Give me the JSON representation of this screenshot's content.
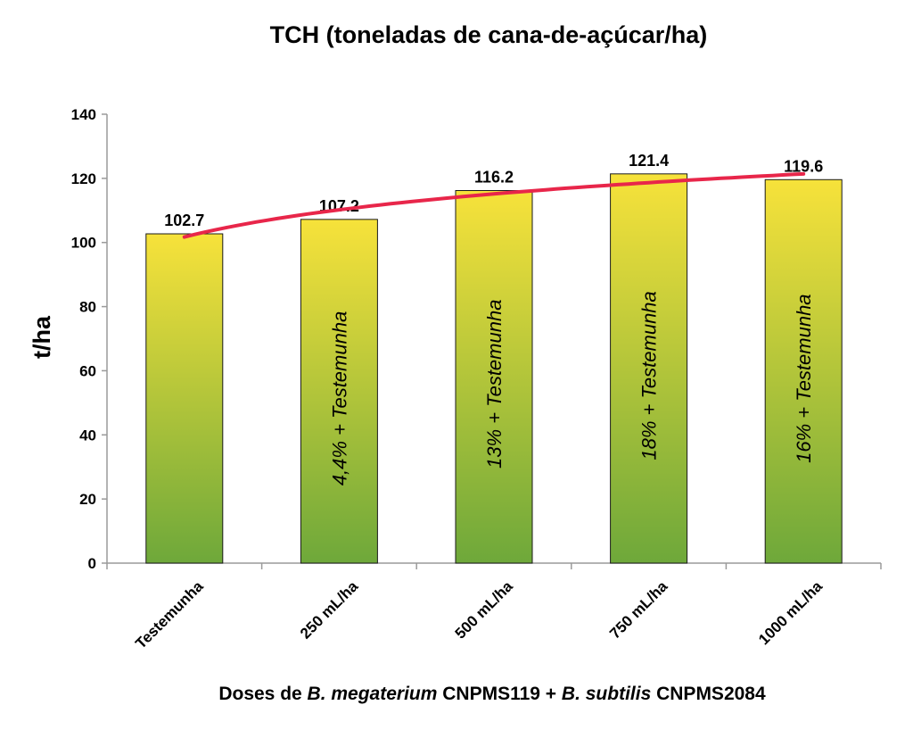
{
  "chart_data": {
    "type": "bar",
    "title": "TCH (toneladas de cana-de-açúcar/ha)",
    "ylabel": "t/ha",
    "xlabel_parts": [
      {
        "text": "Doses de ",
        "italic": false
      },
      {
        "text": "B. megaterium",
        "italic": true
      },
      {
        "text": " CNPMS119 + ",
        "italic": false
      },
      {
        "text": "B. subtilis",
        "italic": true
      },
      {
        "text": " CNPMS2084",
        "italic": false
      }
    ],
    "categories": [
      "Testemunha",
      "250 mL/ha",
      "500 mL/ha",
      "750 mL/ha",
      "1000 mL/ha"
    ],
    "values": [
      102.7,
      107.2,
      116.2,
      121.4,
      119.6
    ],
    "data_labels": [
      "102.7",
      "107.2",
      "116.2",
      "121.4",
      "119.6"
    ],
    "annotations": [
      "",
      "4,4% + Testemunha",
      "13%  + Testemunha",
      "18% + Testemunha",
      "16% + Testemunha"
    ],
    "ylim": [
      0,
      140
    ],
    "yticks": [
      0,
      20,
      40,
      60,
      80,
      100,
      120,
      140
    ],
    "grid": false,
    "trendline": {
      "type": "logarithmic",
      "color": "#e8264a"
    },
    "colors": {
      "bar_top": "#f7e23a",
      "bar_bottom": "#6ea83a",
      "bar_edge": "#1a1a1a",
      "axis": "#9a9a9a"
    }
  }
}
